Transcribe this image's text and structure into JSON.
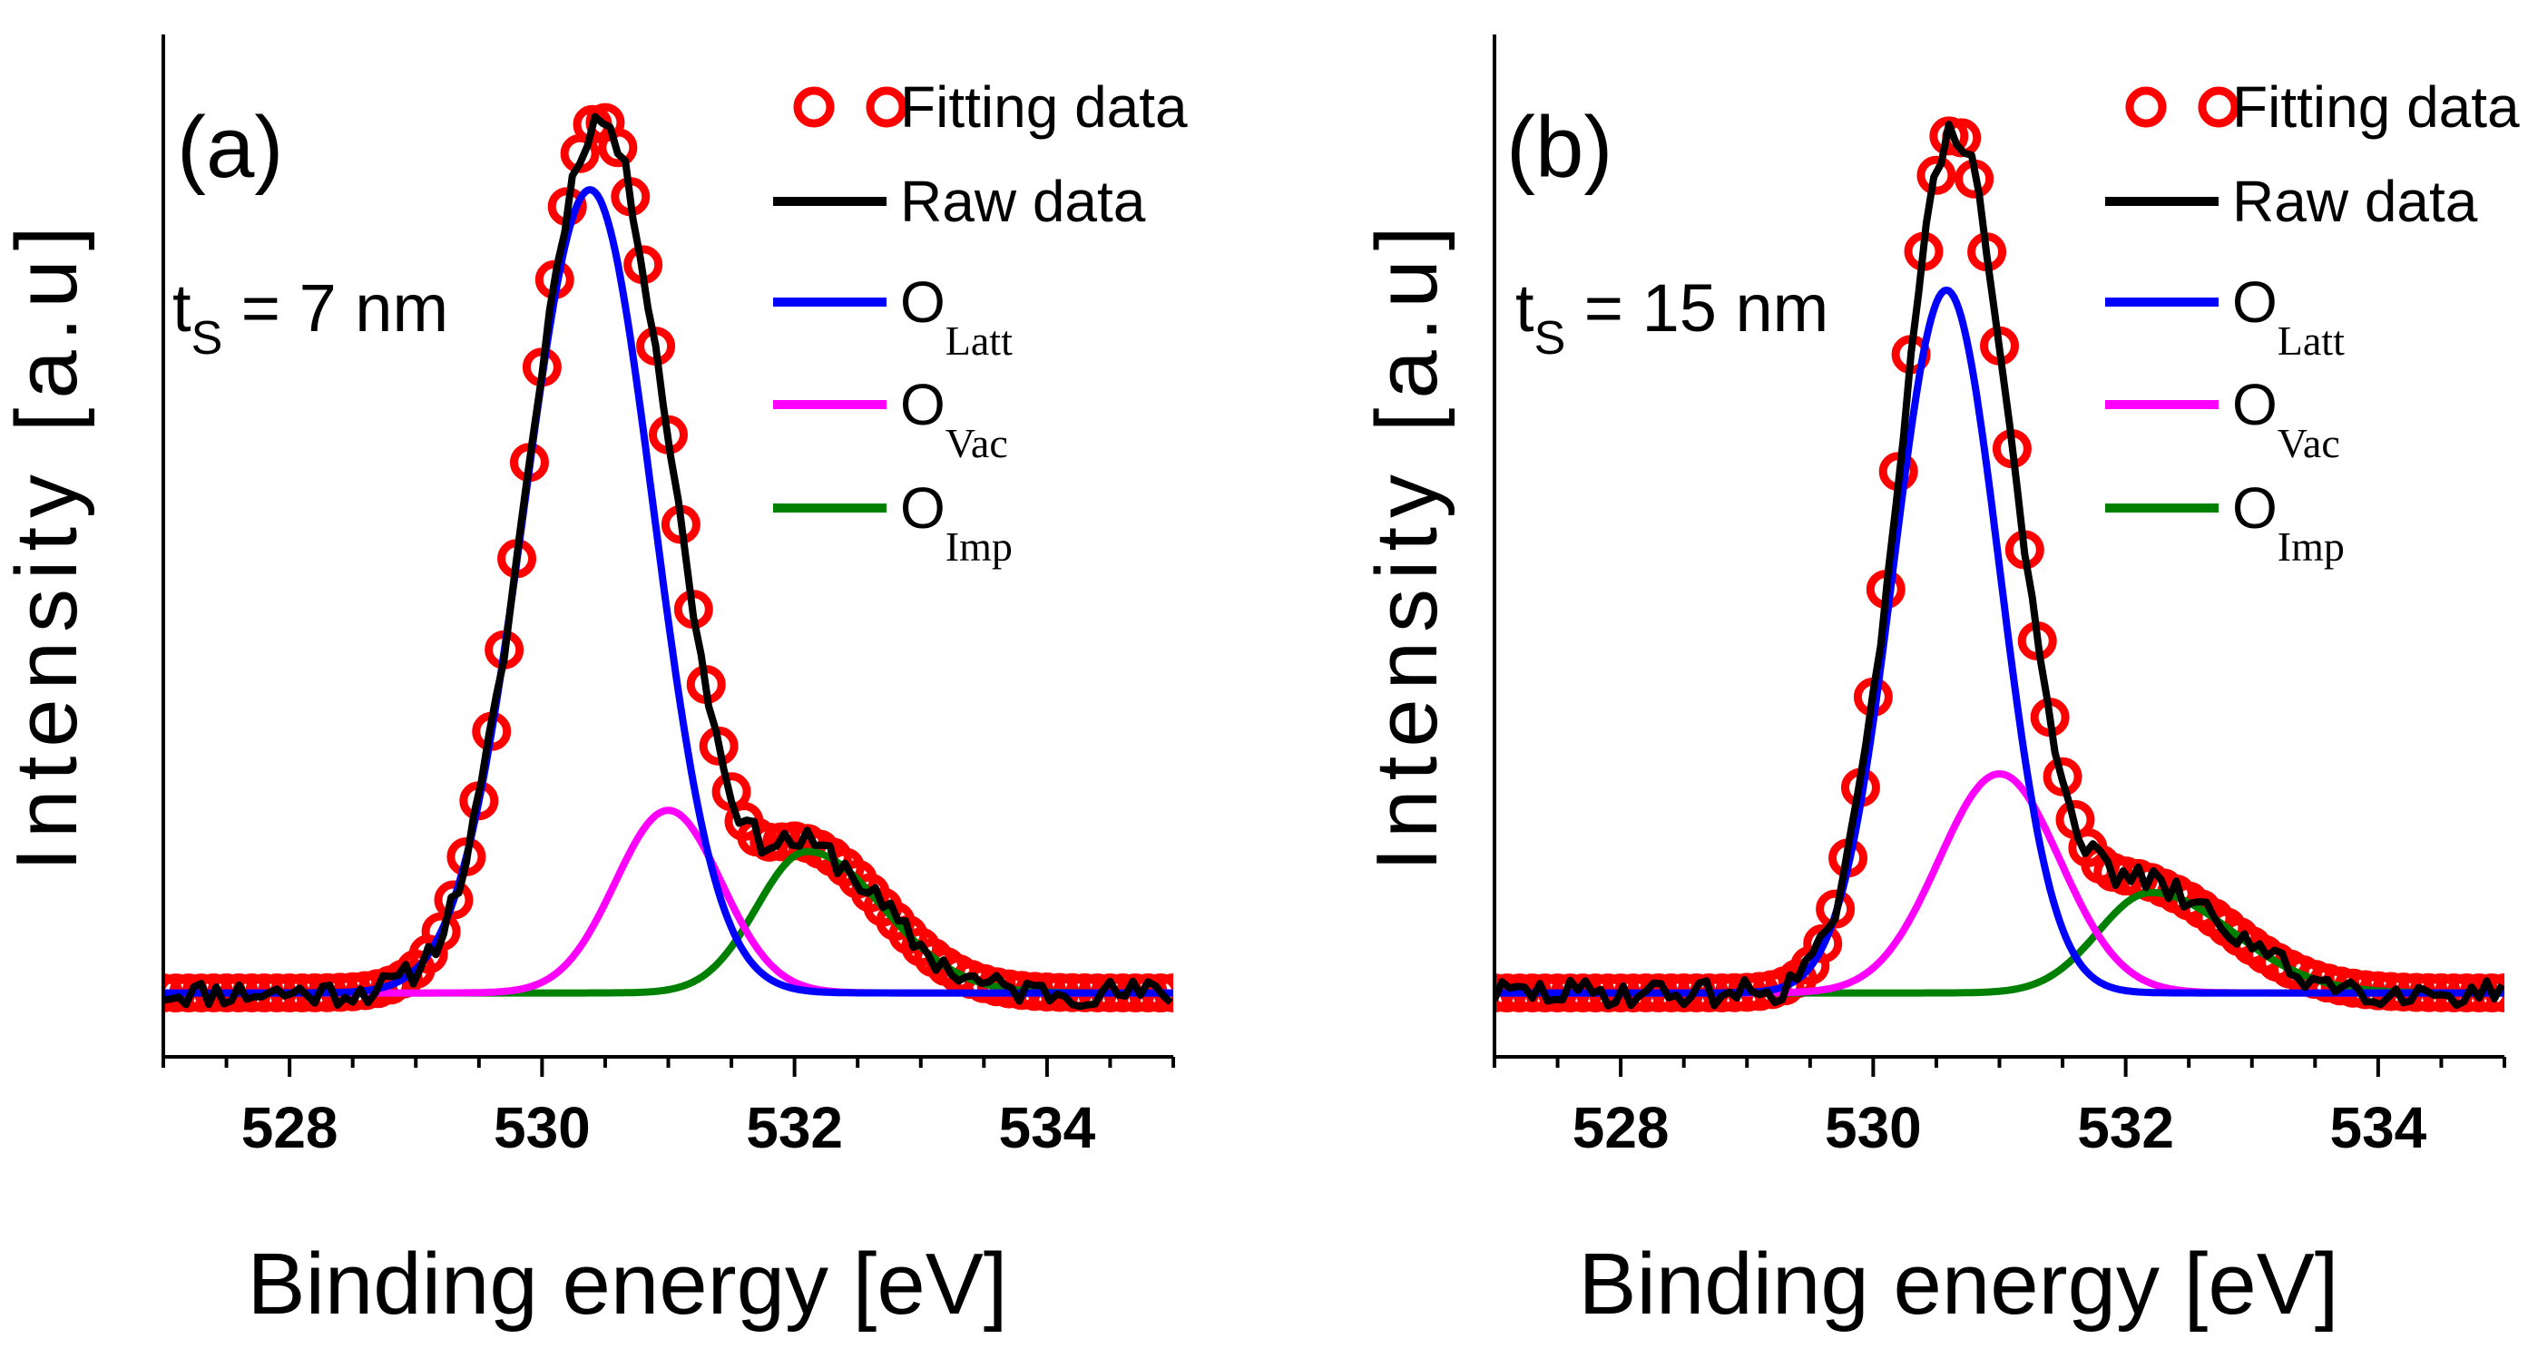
{
  "chart_data": [
    {
      "type": "line",
      "panel_label": "(a)",
      "annotation": {
        "main": "t",
        "sub": "S",
        "rest": " = 7 nm"
      },
      "xlabel": "Binding energy [eV]",
      "ylabel": "Intensity [a.u]",
      "xlim": [
        527,
        535
      ],
      "ylim": [
        0,
        1.12
      ],
      "xticks": [
        528,
        530,
        532,
        534
      ],
      "tick_labels": [
        "528",
        "530",
        "532",
        "534"
      ],
      "baseline": 0.07,
      "components": [
        {
          "name": "O_Latt",
          "center": 530.38,
          "amp": 0.88,
          "sigma_l": 0.52,
          "sigma_r": 0.5
        },
        {
          "name": "O_Vac",
          "center": 531.0,
          "amp": 0.2,
          "sigma_l": 0.42,
          "sigma_r": 0.42
        },
        {
          "name": "O_Imp",
          "center": 532.1,
          "amp": 0.155,
          "sigma_l": 0.4,
          "sigma_r": 0.6
        }
      ],
      "legend": [
        {
          "label": "Fitting data",
          "sub": "",
          "color": "#ff0000",
          "style": "circle"
        },
        {
          "label": "Raw data",
          "sub": "",
          "color": "#000000",
          "style": "line"
        },
        {
          "label": "O",
          "sub": "Latt",
          "color": "#0000ff",
          "style": "line"
        },
        {
          "label": "O",
          "sub": "Vac",
          "color": "#ff00ff",
          "style": "line"
        },
        {
          "label": "O",
          "sub": "Imp",
          "color": "#008000",
          "style": "line"
        }
      ]
    },
    {
      "type": "line",
      "panel_label": "(b)",
      "annotation": {
        "main": "t",
        "sub": "S",
        "rest": " = 15 nm"
      },
      "xlabel": "Binding energy [eV]",
      "ylabel": "Intensity [a.u]",
      "xlim": [
        527,
        535
      ],
      "ylim": [
        0,
        1.12
      ],
      "xticks": [
        528,
        530,
        532,
        534
      ],
      "tick_labels": [
        "528",
        "530",
        "532",
        "534"
      ],
      "baseline": 0.07,
      "components": [
        {
          "name": "O_Latt",
          "center": 530.58,
          "amp": 0.77,
          "sigma_l": 0.42,
          "sigma_r": 0.42
        },
        {
          "name": "O_Vac",
          "center": 531.0,
          "amp": 0.24,
          "sigma_l": 0.48,
          "sigma_r": 0.48
        },
        {
          "name": "O_Imp",
          "center": 532.2,
          "amp": 0.11,
          "sigma_l": 0.42,
          "sigma_r": 0.65
        }
      ],
      "legend": [
        {
          "label": "Fitting data",
          "sub": "",
          "color": "#ff0000",
          "style": "circle"
        },
        {
          "label": "Raw data",
          "sub": "",
          "color": "#000000",
          "style": "line"
        },
        {
          "label": "O",
          "sub": "Latt",
          "color": "#0000ff",
          "style": "line"
        },
        {
          "label": "O",
          "sub": "Vac",
          "color": "#ff00ff",
          "style": "line"
        },
        {
          "label": "O",
          "sub": "Imp",
          "color": "#008000",
          "style": "line"
        }
      ]
    }
  ]
}
